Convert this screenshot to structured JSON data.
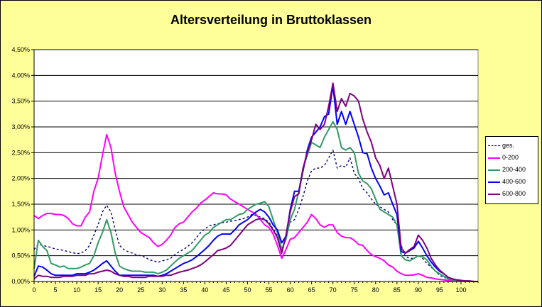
{
  "chart_data": {
    "type": "line",
    "title": "Altersverteilung in Bruttoklassen",
    "xlabel": "",
    "ylabel": "",
    "xlim": [
      0,
      104
    ],
    "ylim": [
      0,
      4.5
    ],
    "x_ticks": [
      0,
      5,
      10,
      15,
      20,
      25,
      30,
      35,
      40,
      45,
      50,
      55,
      60,
      65,
      70,
      75,
      80,
      85,
      90,
      95,
      100
    ],
    "y_ticks": [
      "0,00%",
      "0,50%",
      "1,00%",
      "1,50%",
      "2,00%",
      "2,50%",
      "3,00%",
      "3,50%",
      "4,00%",
      "4,50%"
    ],
    "grid": "horizontal",
    "legend_position": "right",
    "x": [
      0,
      1,
      2,
      3,
      4,
      5,
      6,
      7,
      8,
      9,
      10,
      11,
      12,
      13,
      14,
      15,
      16,
      17,
      18,
      19,
      20,
      21,
      22,
      23,
      24,
      25,
      26,
      27,
      28,
      29,
      30,
      31,
      32,
      33,
      34,
      35,
      36,
      37,
      38,
      39,
      40,
      41,
      42,
      43,
      44,
      45,
      46,
      47,
      48,
      49,
      50,
      51,
      52,
      53,
      54,
      55,
      56,
      57,
      58,
      59,
      60,
      61,
      62,
      63,
      64,
      65,
      66,
      67,
      68,
      69,
      70,
      71,
      72,
      73,
      74,
      75,
      76,
      77,
      78,
      79,
      80,
      81,
      82,
      83,
      84,
      85,
      86,
      87,
      88,
      89,
      90,
      91,
      92,
      93,
      94,
      95,
      96,
      97,
      98,
      99,
      100,
      101,
      102,
      103,
      104
    ],
    "series": [
      {
        "name": "ges.",
        "color": "#000080",
        "dash": "3,3",
        "values": [
          0.62,
          0.72,
          0.7,
          0.68,
          0.66,
          0.63,
          0.62,
          0.6,
          0.58,
          0.56,
          0.54,
          0.55,
          0.6,
          0.7,
          0.9,
          1.1,
          1.35,
          1.48,
          1.35,
          1.0,
          0.7,
          0.62,
          0.58,
          0.55,
          0.52,
          0.5,
          0.47,
          0.42,
          0.4,
          0.37,
          0.4,
          0.42,
          0.45,
          0.52,
          0.58,
          0.62,
          0.68,
          0.75,
          0.85,
          0.95,
          1.02,
          1.08,
          1.1,
          1.12,
          1.14,
          1.15,
          1.17,
          1.18,
          1.2,
          1.22,
          1.25,
          1.3,
          1.28,
          1.25,
          1.22,
          1.15,
          1.02,
          0.88,
          0.6,
          0.88,
          1.15,
          1.2,
          1.4,
          1.65,
          1.95,
          2.15,
          2.2,
          2.2,
          2.25,
          2.4,
          2.55,
          2.2,
          2.25,
          2.22,
          2.4,
          2.1,
          2.0,
          1.8,
          1.72,
          1.6,
          1.5,
          1.45,
          1.4,
          1.35,
          1.2,
          1.1,
          0.7,
          0.48,
          0.45,
          0.45,
          0.5,
          0.45,
          0.35,
          0.28,
          0.2,
          0.12,
          0.08,
          0.05,
          0.03,
          0.02,
          0.01,
          0.01,
          0.01,
          0,
          0
        ]
      },
      {
        "name": "0-200",
        "color": "#ff00ff",
        "values": [
          1.28,
          1.22,
          1.28,
          1.32,
          1.32,
          1.3,
          1.3,
          1.28,
          1.22,
          1.12,
          1.08,
          1.08,
          1.25,
          1.35,
          1.75,
          2.0,
          2.45,
          2.85,
          2.6,
          2.1,
          1.75,
          1.45,
          1.3,
          1.15,
          1.05,
          0.95,
          0.9,
          0.85,
          0.75,
          0.68,
          0.72,
          0.8,
          0.9,
          1.05,
          1.12,
          1.15,
          1.25,
          1.35,
          1.42,
          1.52,
          1.58,
          1.65,
          1.72,
          1.7,
          1.7,
          1.68,
          1.6,
          1.55,
          1.5,
          1.45,
          1.4,
          1.35,
          1.3,
          1.2,
          1.1,
          1.05,
          0.92,
          0.7,
          0.45,
          0.62,
          0.82,
          0.85,
          0.95,
          1.05,
          1.15,
          1.3,
          1.22,
          1.1,
          1.05,
          1.1,
          1.1,
          0.95,
          0.88,
          0.85,
          0.85,
          0.8,
          0.72,
          0.7,
          0.6,
          0.52,
          0.48,
          0.45,
          0.4,
          0.32,
          0.28,
          0.2,
          0.15,
          0.12,
          0.12,
          0.13,
          0.15,
          0.12,
          0.08,
          0.07,
          0.05,
          0.04,
          0.03,
          0.02,
          0.02,
          0.01,
          0.01,
          0,
          0,
          0,
          0
        ]
      },
      {
        "name": "200-400",
        "color": "#339966",
        "values": [
          0.25,
          0.8,
          0.68,
          0.6,
          0.35,
          0.32,
          0.28,
          0.3,
          0.25,
          0.25,
          0.25,
          0.28,
          0.32,
          0.35,
          0.5,
          0.75,
          0.95,
          1.2,
          0.95,
          0.55,
          0.3,
          0.25,
          0.22,
          0.2,
          0.2,
          0.2,
          0.18,
          0.18,
          0.18,
          0.15,
          0.18,
          0.22,
          0.3,
          0.38,
          0.45,
          0.5,
          0.55,
          0.6,
          0.7,
          0.8,
          0.9,
          0.95,
          1.05,
          1.1,
          1.15,
          1.2,
          1.2,
          1.25,
          1.3,
          1.32,
          1.4,
          1.45,
          1.5,
          1.52,
          1.55,
          1.45,
          1.2,
          0.95,
          0.62,
          0.82,
          1.2,
          1.4,
          1.75,
          2.2,
          2.45,
          2.7,
          2.65,
          2.6,
          2.8,
          2.95,
          3.1,
          2.95,
          2.6,
          2.55,
          2.6,
          2.5,
          2.1,
          1.95,
          1.9,
          1.8,
          1.6,
          1.4,
          1.35,
          1.3,
          1.25,
          1.1,
          0.5,
          0.42,
          0.4,
          0.45,
          0.5,
          0.48,
          0.42,
          0.3,
          0.2,
          0.15,
          0.1,
          0.05,
          0.03,
          0.02,
          0.01,
          0.01,
          0,
          0,
          0
        ]
      },
      {
        "name": "400-600",
        "color": "#0000ff",
        "values": [
          0.1,
          0.3,
          0.28,
          0.22,
          0.15,
          0.12,
          0.12,
          0.12,
          0.12,
          0.12,
          0.15,
          0.15,
          0.15,
          0.18,
          0.22,
          0.28,
          0.35,
          0.4,
          0.3,
          0.2,
          0.12,
          0.12,
          0.12,
          0.12,
          0.12,
          0.12,
          0.12,
          0.12,
          0.12,
          0.1,
          0.12,
          0.15,
          0.2,
          0.25,
          0.3,
          0.35,
          0.38,
          0.42,
          0.48,
          0.55,
          0.62,
          0.7,
          0.8,
          0.88,
          0.92,
          0.92,
          0.92,
          1.0,
          1.1,
          1.15,
          1.2,
          1.28,
          1.35,
          1.4,
          1.35,
          1.25,
          1.1,
          1.0,
          0.75,
          0.88,
          1.4,
          1.75,
          1.75,
          2.15,
          2.55,
          2.8,
          2.9,
          3.0,
          3.2,
          3.25,
          3.8,
          3.05,
          3.3,
          3.05,
          3.3,
          3.05,
          2.8,
          2.5,
          2.48,
          2.2,
          2.0,
          1.85,
          1.68,
          1.72,
          1.5,
          1.3,
          0.58,
          0.55,
          0.6,
          0.65,
          0.78,
          0.65,
          0.5,
          0.38,
          0.28,
          0.2,
          0.15,
          0.08,
          0.05,
          0.03,
          0.02,
          0.01,
          0.01,
          0,
          0
        ]
      },
      {
        "name": "600-800",
        "color": "#800080",
        "values": [
          0.05,
          0.12,
          0.1,
          0.1,
          0.08,
          0.08,
          0.08,
          0.1,
          0.1,
          0.1,
          0.12,
          0.12,
          0.12,
          0.15,
          0.15,
          0.18,
          0.2,
          0.22,
          0.2,
          0.15,
          0.12,
          0.1,
          0.1,
          0.08,
          0.08,
          0.08,
          0.08,
          0.1,
          0.1,
          0.1,
          0.1,
          0.12,
          0.12,
          0.15,
          0.18,
          0.2,
          0.22,
          0.25,
          0.28,
          0.32,
          0.38,
          0.45,
          0.52,
          0.6,
          0.62,
          0.65,
          0.7,
          0.8,
          0.9,
          1.0,
          1.1,
          1.15,
          1.2,
          1.22,
          1.2,
          1.12,
          1.0,
          0.85,
          0.55,
          0.9,
          1.35,
          1.65,
          1.7,
          2.2,
          2.5,
          2.75,
          3.05,
          2.95,
          3.05,
          3.4,
          3.85,
          3.3,
          3.55,
          3.4,
          3.65,
          3.6,
          3.5,
          3.15,
          2.9,
          2.7,
          2.4,
          2.25,
          2.0,
          2.2,
          1.85,
          1.5,
          0.65,
          0.55,
          0.62,
          0.68,
          0.9,
          0.8,
          0.65,
          0.45,
          0.32,
          0.22,
          0.15,
          0.08,
          0.05,
          0.03,
          0.02,
          0.01,
          0.01,
          0,
          0
        ]
      }
    ]
  }
}
